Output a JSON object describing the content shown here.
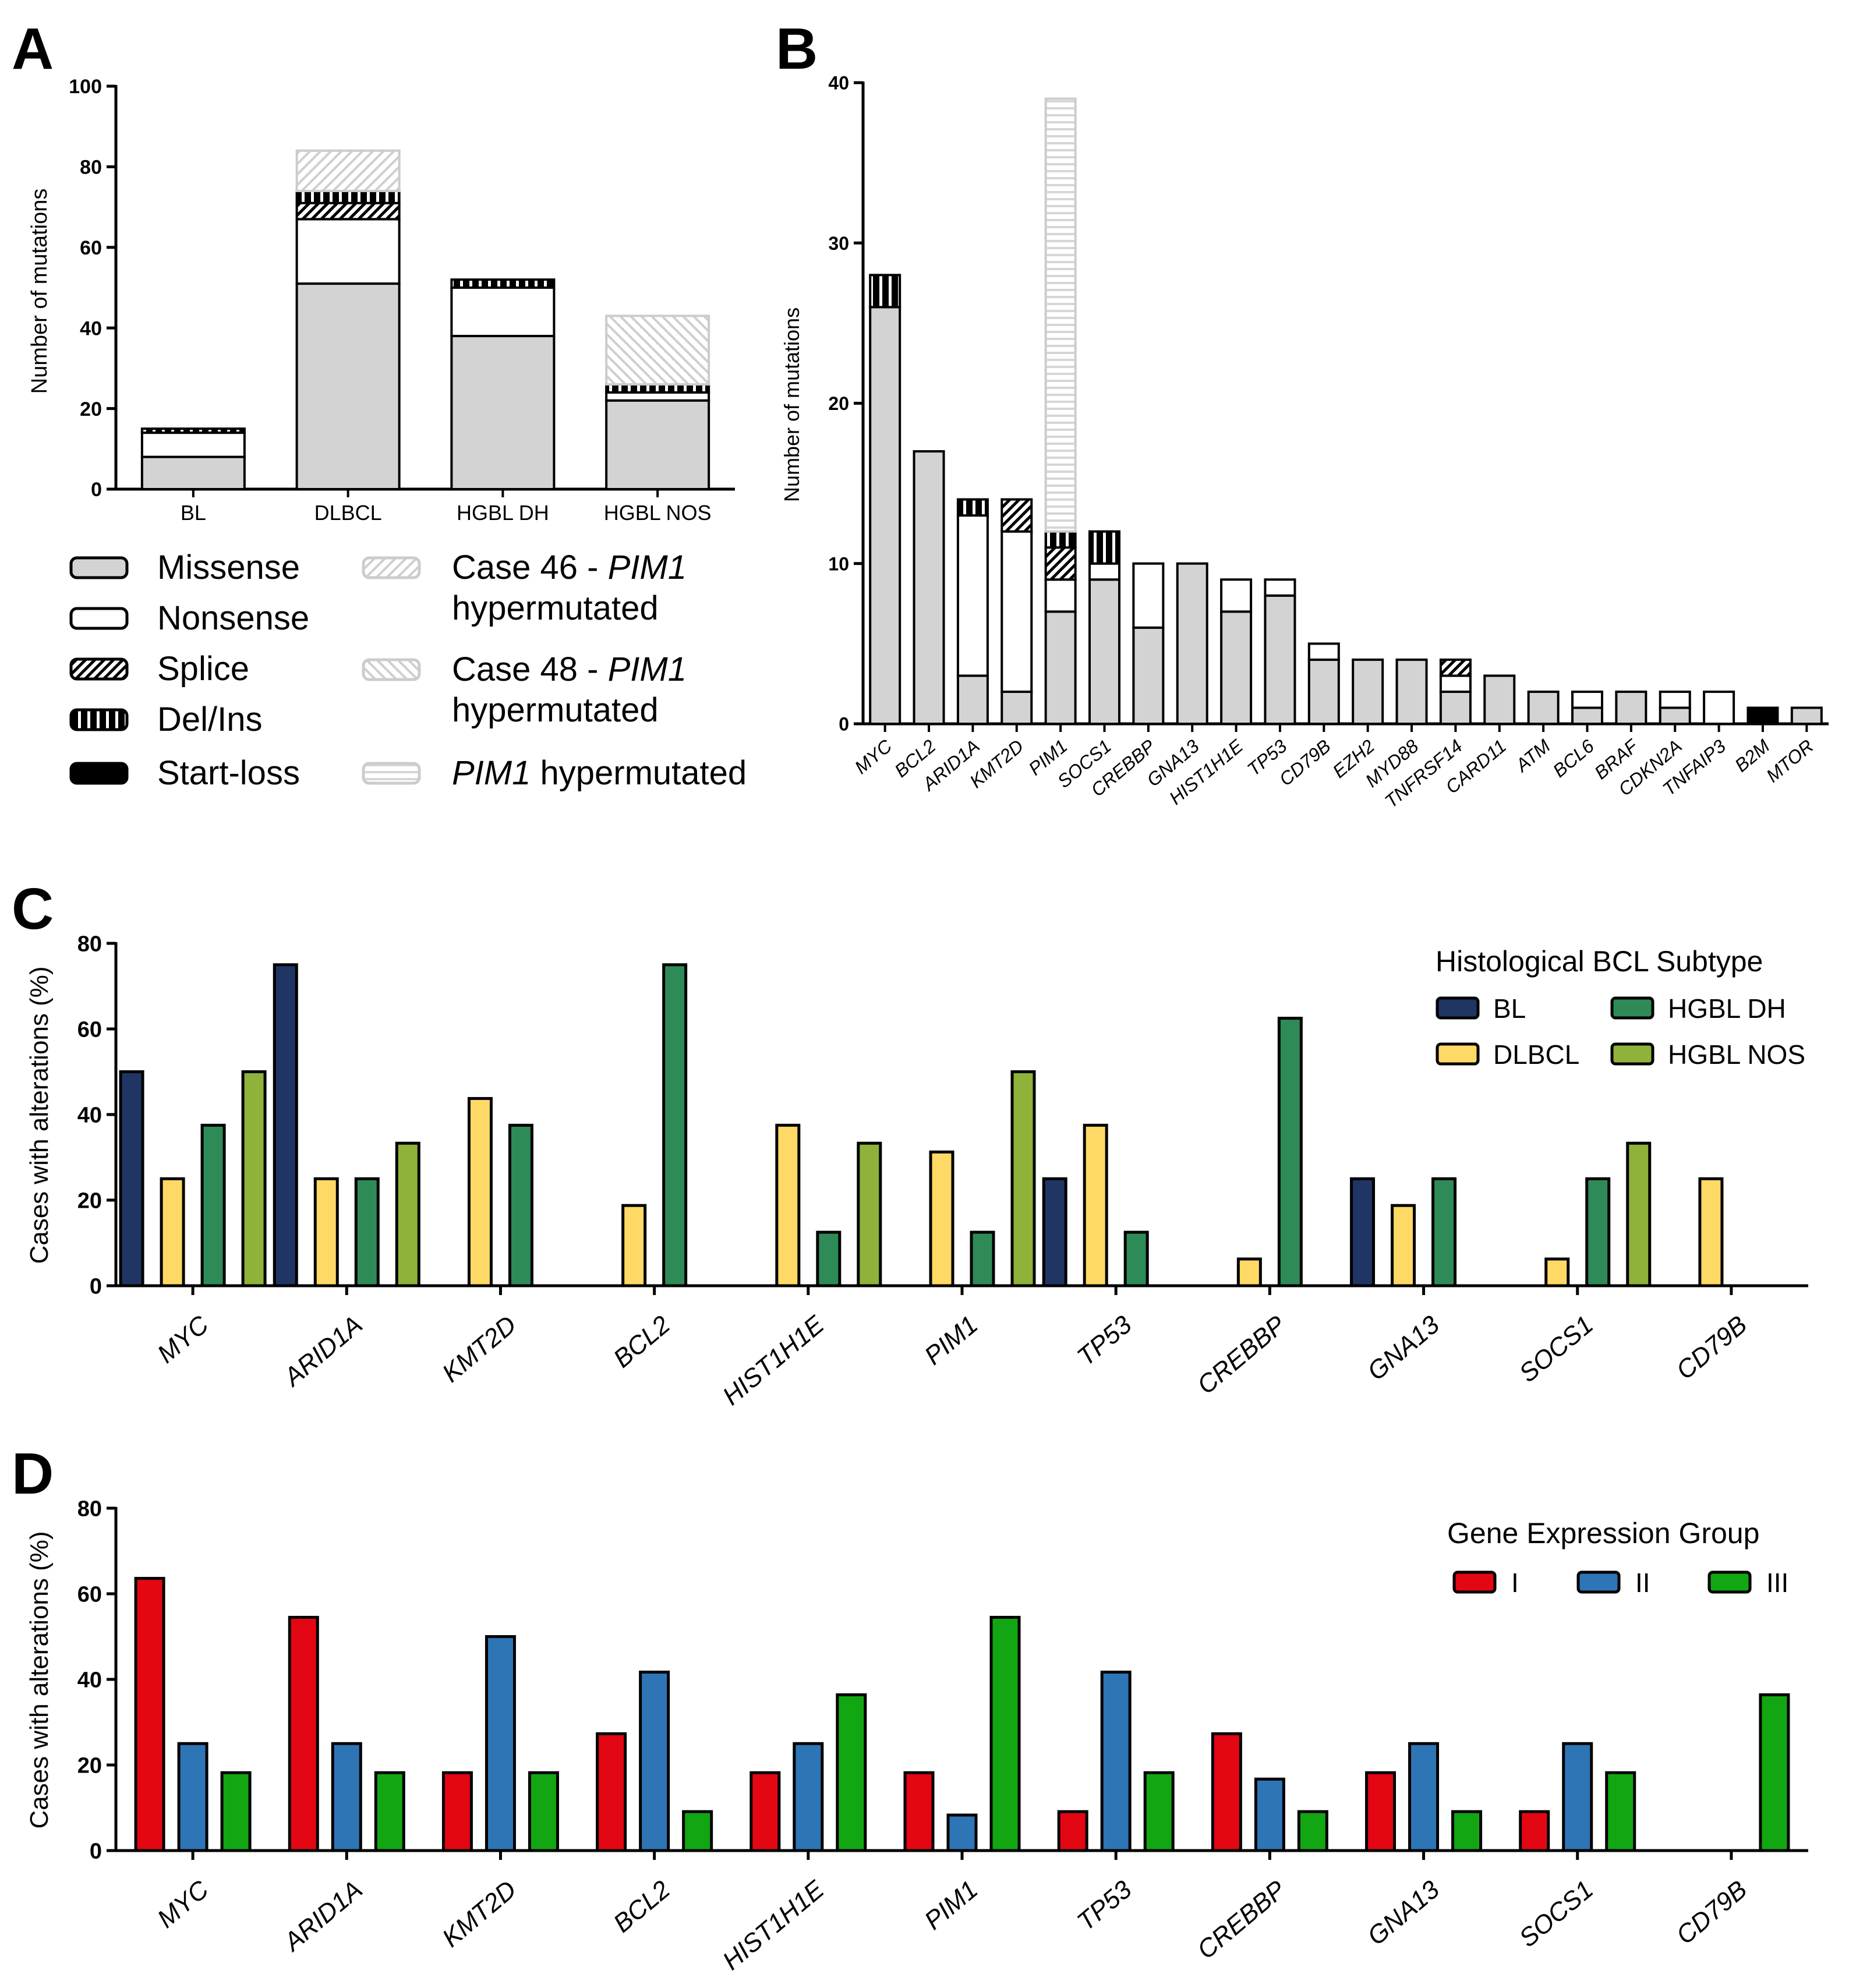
{
  "panel_letters": [
    "A",
    "B",
    "C",
    "D"
  ],
  "colors": {
    "missense": "#d3d3d3",
    "nonsense": "#ffffff",
    "hyper": "#e2e2e2",
    "BL": "#1f3564",
    "DLBCL": "#ffd966",
    "HGBL DH": "#2e8b57",
    "HGBL NOS": "#8fb23b",
    "I": "#e30613",
    "II": "#2e75b6",
    "III": "#12a612"
  },
  "chart_data": [
    {
      "panel": "A",
      "type": "bar",
      "stacked": true,
      "ylabel": "Number of mutations",
      "ylim": [
        0,
        100
      ],
      "yticks": [
        0,
        20,
        40,
        60,
        80,
        100
      ],
      "categories": [
        "BL",
        "DLBCL",
        "HGBL DH",
        "HGBL NOS"
      ],
      "series": [
        {
          "name": "Missense",
          "values": [
            8,
            51,
            38,
            22
          ]
        },
        {
          "name": "Nonsense",
          "values": [
            6,
            16,
            12,
            2
          ]
        },
        {
          "name": "Splice",
          "values": [
            0,
            4,
            0,
            0
          ]
        },
        {
          "name": "Del/Ins",
          "values": [
            1,
            3,
            2,
            2
          ]
        },
        {
          "name": "Start-loss",
          "values": [
            0,
            0,
            0,
            0
          ]
        },
        {
          "name": "Case 46 - PIM1 hypermutated",
          "values": [
            0,
            10,
            0,
            0
          ]
        },
        {
          "name": "Case 48 - PIM1 hypermutated",
          "values": [
            0,
            0,
            0,
            17
          ]
        }
      ],
      "legend": [
        {
          "key": "missense",
          "label": "Missense"
        },
        {
          "key": "nonsense",
          "label": "Nonsense"
        },
        {
          "key": "splice",
          "label": "Splice"
        },
        {
          "key": "delins",
          "label": "Del/Ins"
        },
        {
          "key": "startloss",
          "label": "Start-loss"
        },
        {
          "key": "case46",
          "label_prefix": "Case 46 - ",
          "label_gene": "PIM1",
          "label_line2": "hypermutated"
        },
        {
          "key": "case48",
          "label_prefix": "Case 48 - ",
          "label_gene": "PIM1",
          "label_line2": "hypermutated"
        },
        {
          "key": "pim1hyper",
          "label_gene": "PIM1",
          "label_suffix": " hypermutated"
        }
      ]
    },
    {
      "panel": "B",
      "type": "bar",
      "stacked": true,
      "ylabel": "Number of mutations",
      "ylim": [
        0,
        40
      ],
      "yticks": [
        0,
        10,
        20,
        30,
        40
      ],
      "categories": [
        "MYC",
        "BCL2",
        "ARID1A",
        "KMT2D",
        "PIM1",
        "SOCS1",
        "CREBBP",
        "GNA13",
        "HIST1H1E",
        "TP53",
        "CD79B",
        "EZH2",
        "MYD88",
        "TNFRSF14",
        "CARD11",
        "ATM",
        "BCL6",
        "BRAF",
        "CDKN2A",
        "TNFAIP3",
        "B2M",
        "MTOR"
      ],
      "series": [
        {
          "name": "Missense",
          "values": [
            26,
            17,
            3,
            2,
            7,
            9,
            6,
            10,
            7,
            8,
            4,
            4,
            4,
            2,
            3,
            2,
            1,
            2,
            1,
            0,
            0,
            1
          ]
        },
        {
          "name": "Nonsense",
          "values": [
            0,
            0,
            10,
            10,
            2,
            1,
            4,
            0,
            2,
            1,
            1,
            0,
            0,
            1,
            0,
            0,
            1,
            0,
            1,
            2,
            0,
            0
          ]
        },
        {
          "name": "Splice",
          "values": [
            0,
            0,
            0,
            2,
            2,
            0,
            0,
            0,
            0,
            0,
            0,
            0,
            0,
            1,
            0,
            0,
            0,
            0,
            0,
            0,
            0,
            0
          ]
        },
        {
          "name": "Del/Ins",
          "values": [
            2,
            0,
            1,
            0,
            1,
            2,
            0,
            0,
            0,
            0,
            0,
            0,
            0,
            0,
            0,
            0,
            0,
            0,
            0,
            0,
            0,
            0
          ]
        },
        {
          "name": "Start-loss",
          "values": [
            0,
            0,
            0,
            0,
            0,
            0,
            0,
            0,
            0,
            0,
            0,
            0,
            0,
            0,
            0,
            0,
            0,
            0,
            0,
            0,
            1,
            0
          ]
        },
        {
          "name": "PIM1 hypermutated",
          "values": [
            0,
            0,
            0,
            0,
            27,
            0,
            0,
            0,
            0,
            0,
            0,
            0,
            0,
            0,
            0,
            0,
            0,
            0,
            0,
            0,
            0,
            0
          ]
        }
      ]
    },
    {
      "panel": "C",
      "type": "bar",
      "ylabel": "Cases with alterations (%)",
      "ylim": [
        0,
        80
      ],
      "yticks": [
        0,
        20,
        40,
        60,
        80
      ],
      "legend_title": "Histological BCL Subtype",
      "categories": [
        "MYC",
        "ARID1A",
        "KMT2D",
        "BCL2",
        "HIST1H1E",
        "PIM1",
        "TP53",
        "CREBBP",
        "GNA13",
        "SOCS1",
        "CD79B"
      ],
      "series": [
        {
          "name": "BL",
          "values": [
            50,
            75,
            0,
            0,
            0,
            0,
            25,
            0,
            25,
            0,
            0
          ]
        },
        {
          "name": "DLBCL",
          "values": [
            25,
            25,
            43.75,
            18.75,
            37.5,
            31.25,
            37.5,
            6.25,
            18.75,
            6.25,
            25
          ]
        },
        {
          "name": "HGBL DH",
          "values": [
            37.5,
            25,
            37.5,
            75,
            12.5,
            12.5,
            12.5,
            62.5,
            25,
            25,
            0
          ]
        },
        {
          "name": "HGBL NOS",
          "values": [
            50,
            33.3,
            0,
            0,
            33.3,
            50,
            0,
            0,
            0,
            33.3,
            0
          ]
        }
      ]
    },
    {
      "panel": "D",
      "type": "bar",
      "ylabel": "Cases with alterations (%)",
      "ylim": [
        0,
        80
      ],
      "yticks": [
        0,
        20,
        40,
        60,
        80
      ],
      "legend_title": "Gene Expression Group",
      "categories": [
        "MYC",
        "ARID1A",
        "KMT2D",
        "BCL2",
        "HIST1H1E",
        "PIM1",
        "TP53",
        "CREBBP",
        "GNA13",
        "SOCS1",
        "CD79B"
      ],
      "series": [
        {
          "name": "I",
          "values": [
            63.6,
            54.5,
            18.2,
            27.3,
            18.2,
            18.2,
            9.1,
            27.3,
            18.2,
            9.1,
            0
          ]
        },
        {
          "name": "II",
          "values": [
            25,
            25,
            50,
            41.7,
            25,
            8.3,
            41.7,
            16.7,
            25,
            25,
            0
          ]
        },
        {
          "name": "III",
          "values": [
            18.2,
            18.2,
            18.2,
            9.1,
            36.4,
            54.5,
            18.2,
            9.1,
            9.1,
            18.2,
            36.4
          ]
        }
      ]
    }
  ]
}
